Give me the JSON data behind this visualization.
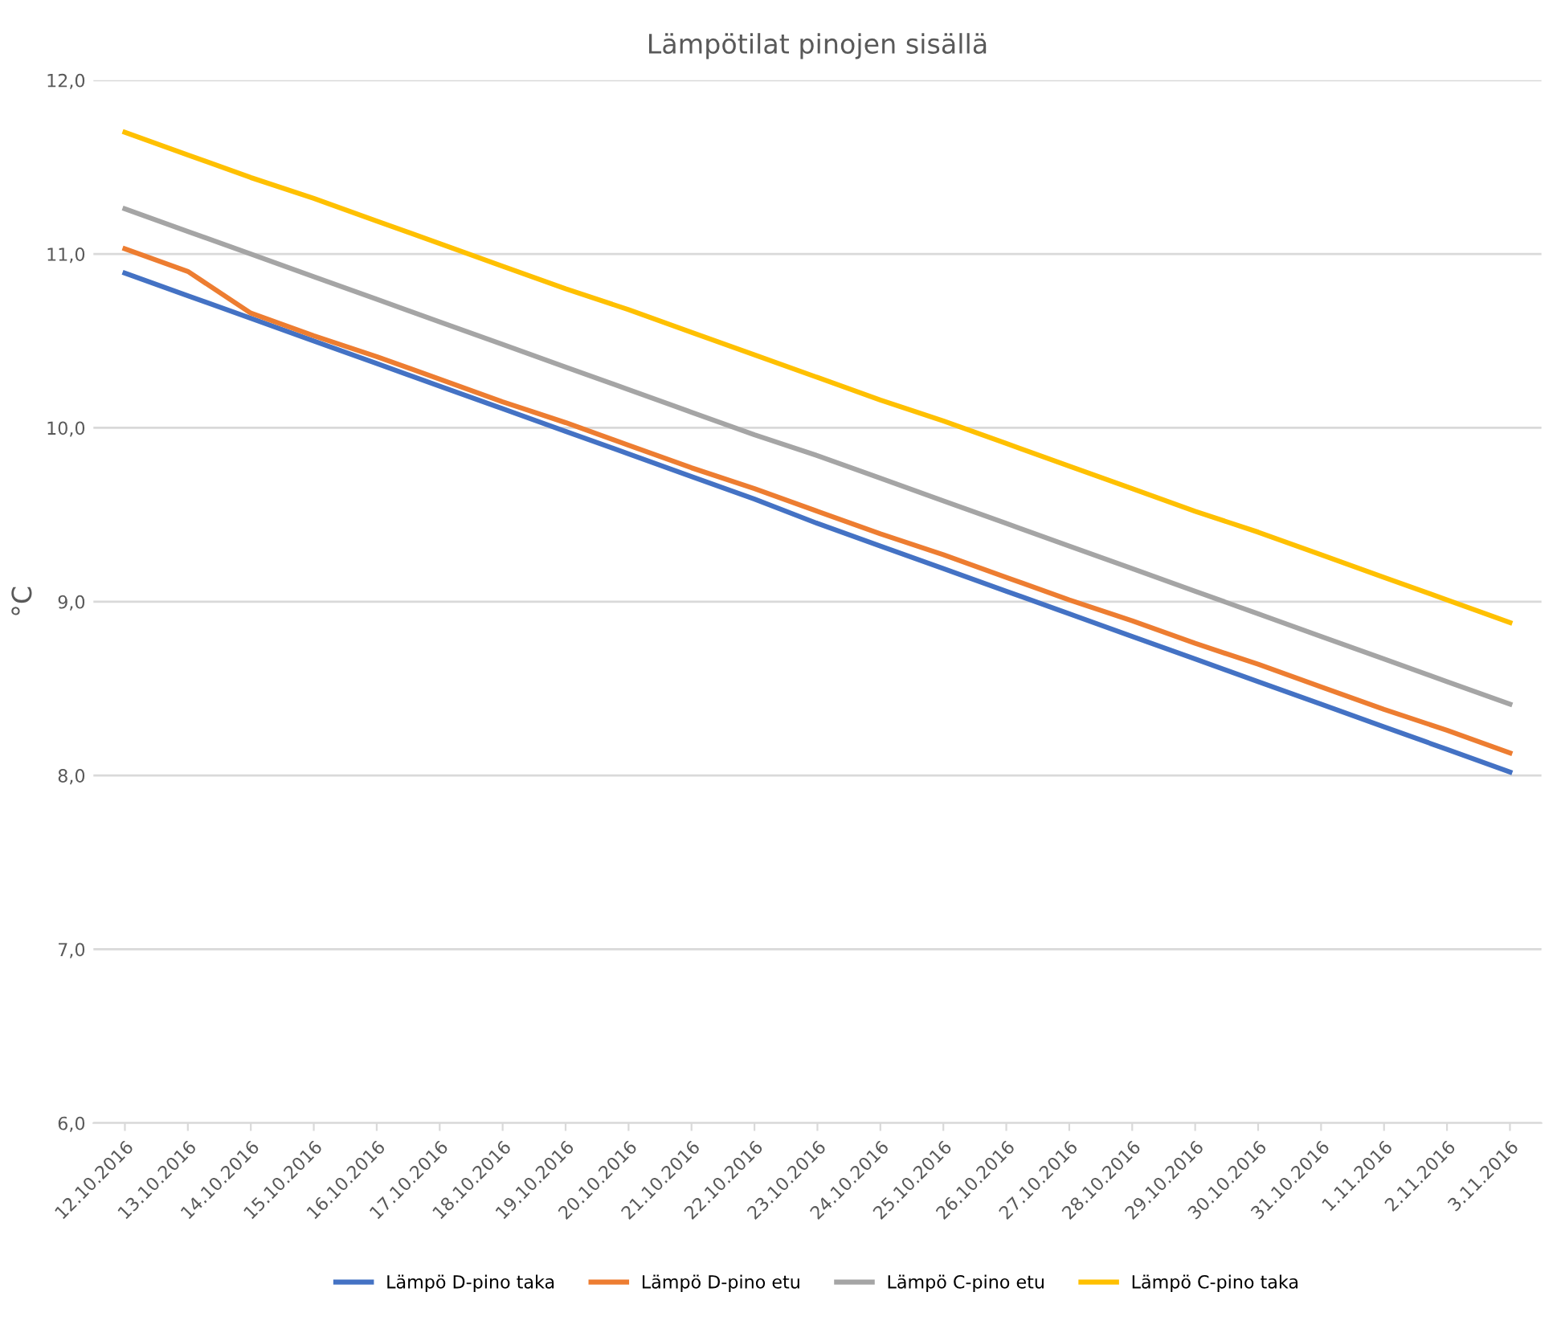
{
  "chart_data": {
    "type": "line",
    "title": "Lämpötilat pinojen sisällä",
    "ylabel": "°C",
    "categories": [
      "12.10.2016",
      "13.10.2016",
      "14.10.2016",
      "15.10.2016",
      "16.10.2016",
      "17.10.2016",
      "18.10.2016",
      "19.10.2016",
      "20.10.2016",
      "21.10.2016",
      "22.10.2016",
      "23.10.2016",
      "24.10.2016",
      "25.10.2016",
      "26.10.2016",
      "27.10.2016",
      "28.10.2016",
      "29.10.2016",
      "30.10.2016",
      "31.10.2016",
      "1.11.2016",
      "2.11.2016",
      "3.11.2016"
    ],
    "series": [
      {
        "name": "Lämpö D-pino taka",
        "color": "#4472c4",
        "values": [
          10.89,
          10.76,
          10.63,
          10.5,
          10.37,
          10.24,
          10.11,
          9.98,
          9.85,
          9.72,
          9.59,
          9.45,
          9.32,
          9.19,
          9.06,
          8.93,
          8.8,
          8.67,
          8.54,
          8.41,
          8.28,
          8.15,
          8.02
        ]
      },
      {
        "name": "Lämpö D-pino etu",
        "color": "#ed7d31",
        "values": [
          11.03,
          10.9,
          10.66,
          10.53,
          10.41,
          10.28,
          10.15,
          10.03,
          9.9,
          9.77,
          9.65,
          9.52,
          9.39,
          9.27,
          9.14,
          9.01,
          8.89,
          8.76,
          8.64,
          8.51,
          8.38,
          8.26,
          8.13
        ]
      },
      {
        "name": "Lämpö C-pino etu",
        "color": "#a5a5a5",
        "values": [
          11.26,
          11.13,
          11.0,
          10.87,
          10.74,
          10.61,
          10.48,
          10.35,
          10.22,
          10.09,
          9.96,
          9.84,
          9.71,
          9.58,
          9.45,
          9.32,
          9.19,
          9.06,
          8.93,
          8.8,
          8.67,
          8.54,
          8.41
        ]
      },
      {
        "name": "Lämpö C-pino taka",
        "color": "#ffc000",
        "values": [
          11.7,
          11.57,
          11.44,
          11.32,
          11.19,
          11.06,
          10.93,
          10.8,
          10.68,
          10.55,
          10.42,
          10.29,
          10.16,
          10.04,
          9.91,
          9.78,
          9.65,
          9.52,
          9.4,
          9.27,
          9.14,
          9.01,
          8.88
        ]
      }
    ],
    "ylim": [
      6,
      12
    ],
    "yticks": [
      {
        "value": 6,
        "label": "6,0"
      },
      {
        "value": 7,
        "label": "7,0"
      },
      {
        "value": 8,
        "label": "8,0"
      },
      {
        "value": 9,
        "label": "9,0"
      },
      {
        "value": 10,
        "label": "10,0"
      },
      {
        "value": 11,
        "label": "11,0"
      },
      {
        "value": 12,
        "label": "12,0"
      }
    ],
    "grid": "y",
    "legend": "bottom",
    "marker": "none",
    "line_style": "solid"
  }
}
